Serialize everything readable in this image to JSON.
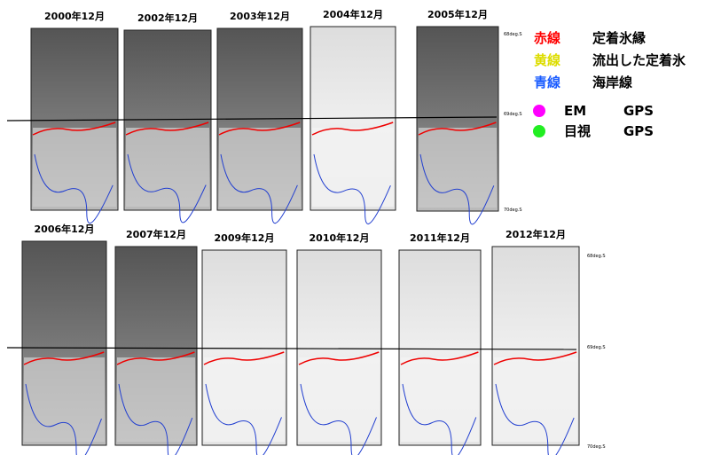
{
  "top_row": {
    "panels": [
      {
        "label": "2000年12月"
      },
      {
        "label": "2002年12月"
      },
      {
        "label": "2003年12月"
      },
      {
        "label": "2004年12月"
      },
      {
        "label": "2005年12月"
      }
    ],
    "lat_labels": [
      "68deg.S",
      "69deg.S",
      "70deg.S"
    ]
  },
  "bottom_row": {
    "panels": [
      {
        "label": "2006年12月"
      },
      {
        "label": "2007年12月"
      },
      {
        "label": "2009年12月"
      },
      {
        "label": "2010年12月"
      },
      {
        "label": "2011年12月"
      },
      {
        "label": "2012年12月"
      }
    ],
    "lat_labels": [
      "68deg.S",
      "69deg.S",
      "70deg.S"
    ]
  },
  "legend": {
    "lines": [
      {
        "key": "赤線",
        "text": "定着氷縁"
      },
      {
        "key": "黄線",
        "text": "流出した定着氷"
      },
      {
        "key": "青線",
        "text": "海岸線"
      }
    ],
    "dots": [
      {
        "key": "EM",
        "text": "GPS"
      },
      {
        "key": "目視",
        "text": "GPS"
      }
    ]
  }
}
